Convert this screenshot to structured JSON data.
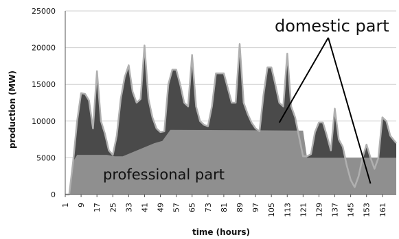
{
  "chart_data": {
    "type": "area",
    "xlabel": "time (hours)",
    "ylabel": "production (MW)",
    "ylim": [
      0,
      25000
    ],
    "xlim": [
      1,
      168
    ],
    "grid": true,
    "y_ticks": [
      "0",
      "5000",
      "10000",
      "15000",
      "20000",
      "25000"
    ],
    "x_ticks": [
      "1",
      "9",
      "17",
      "25",
      "33",
      "41",
      "49",
      "57",
      "65",
      "73",
      "81",
      "89",
      "97",
      "105",
      "113",
      "121",
      "129",
      "137",
      "145",
      "153",
      "161"
    ],
    "annotations": [
      {
        "text": "domestic part",
        "arrows_to": [
          [
            109,
            9800
          ],
          [
            155,
            1500
          ]
        ]
      },
      {
        "text": "professional part"
      }
    ],
    "colors": {
      "professional": "#8f8f8f",
      "domestic": "#4a4a4a",
      "outline": "#b0b0b0",
      "grid": "#cfcfcf",
      "axis": "#555555"
    },
    "series": [
      {
        "role": "professional part",
        "points": [
          [
            1,
            0
          ],
          [
            3,
            0
          ],
          [
            5,
            4500
          ],
          [
            7,
            5400
          ],
          [
            22,
            5400
          ],
          [
            26,
            5200
          ],
          [
            30,
            5200
          ],
          [
            46,
            7000
          ],
          [
            50,
            7300
          ],
          [
            54,
            8800
          ],
          [
            121,
            8700
          ],
          [
            123,
            5000
          ],
          [
            168,
            5000
          ]
        ]
      },
      {
        "role": "total production",
        "points": [
          [
            1,
            0
          ],
          [
            3,
            0
          ],
          [
            5,
            4500
          ],
          [
            7,
            10000
          ],
          [
            9,
            13800
          ],
          [
            11,
            13700
          ],
          [
            13,
            12800
          ],
          [
            15,
            9000
          ],
          [
            17,
            16800
          ],
          [
            19,
            10000
          ],
          [
            21,
            8300
          ],
          [
            23,
            6000
          ],
          [
            25,
            5400
          ],
          [
            27,
            8000
          ],
          [
            29,
            13000
          ],
          [
            31,
            16000
          ],
          [
            33,
            17600
          ],
          [
            35,
            14000
          ],
          [
            37,
            12500
          ],
          [
            39,
            13000
          ],
          [
            41,
            20300
          ],
          [
            43,
            13000
          ],
          [
            45,
            10500
          ],
          [
            47,
            9000
          ],
          [
            49,
            8500
          ],
          [
            51,
            8600
          ],
          [
            53,
            15000
          ],
          [
            55,
            17000
          ],
          [
            57,
            17000
          ],
          [
            59,
            15000
          ],
          [
            61,
            12500
          ],
          [
            63,
            12000
          ],
          [
            65,
            19000
          ],
          [
            67,
            12000
          ],
          [
            69,
            10000
          ],
          [
            71,
            9500
          ],
          [
            73,
            9300
          ],
          [
            75,
            12000
          ],
          [
            77,
            16500
          ],
          [
            79,
            16500
          ],
          [
            81,
            16500
          ],
          [
            83,
            14500
          ],
          [
            85,
            12500
          ],
          [
            87,
            12500
          ],
          [
            89,
            20500
          ],
          [
            91,
            12500
          ],
          [
            93,
            11000
          ],
          [
            95,
            9800
          ],
          [
            97,
            9000
          ],
          [
            99,
            8600
          ],
          [
            101,
            13500
          ],
          [
            103,
            17300
          ],
          [
            105,
            17300
          ],
          [
            107,
            15000
          ],
          [
            109,
            12500
          ],
          [
            111,
            12000
          ],
          [
            113,
            19200
          ],
          [
            115,
            12000
          ],
          [
            117,
            10500
          ],
          [
            119,
            7800
          ],
          [
            121,
            5200
          ],
          [
            123,
            5200
          ],
          [
            125,
            5500
          ],
          [
            127,
            8500
          ],
          [
            129,
            9800
          ],
          [
            131,
            9800
          ],
          [
            133,
            8000
          ],
          [
            135,
            6000
          ],
          [
            137,
            11700
          ],
          [
            139,
            7500
          ],
          [
            141,
            6500
          ],
          [
            143,
            4000
          ],
          [
            145,
            2000
          ],
          [
            147,
            1000
          ],
          [
            149,
            2500
          ],
          [
            151,
            5000
          ],
          [
            153,
            6800
          ],
          [
            155,
            5000
          ],
          [
            157,
            3500
          ],
          [
            159,
            5000
          ],
          [
            161,
            10500
          ],
          [
            163,
            10000
          ],
          [
            165,
            8000
          ],
          [
            168,
            7000
          ]
        ]
      }
    ]
  }
}
